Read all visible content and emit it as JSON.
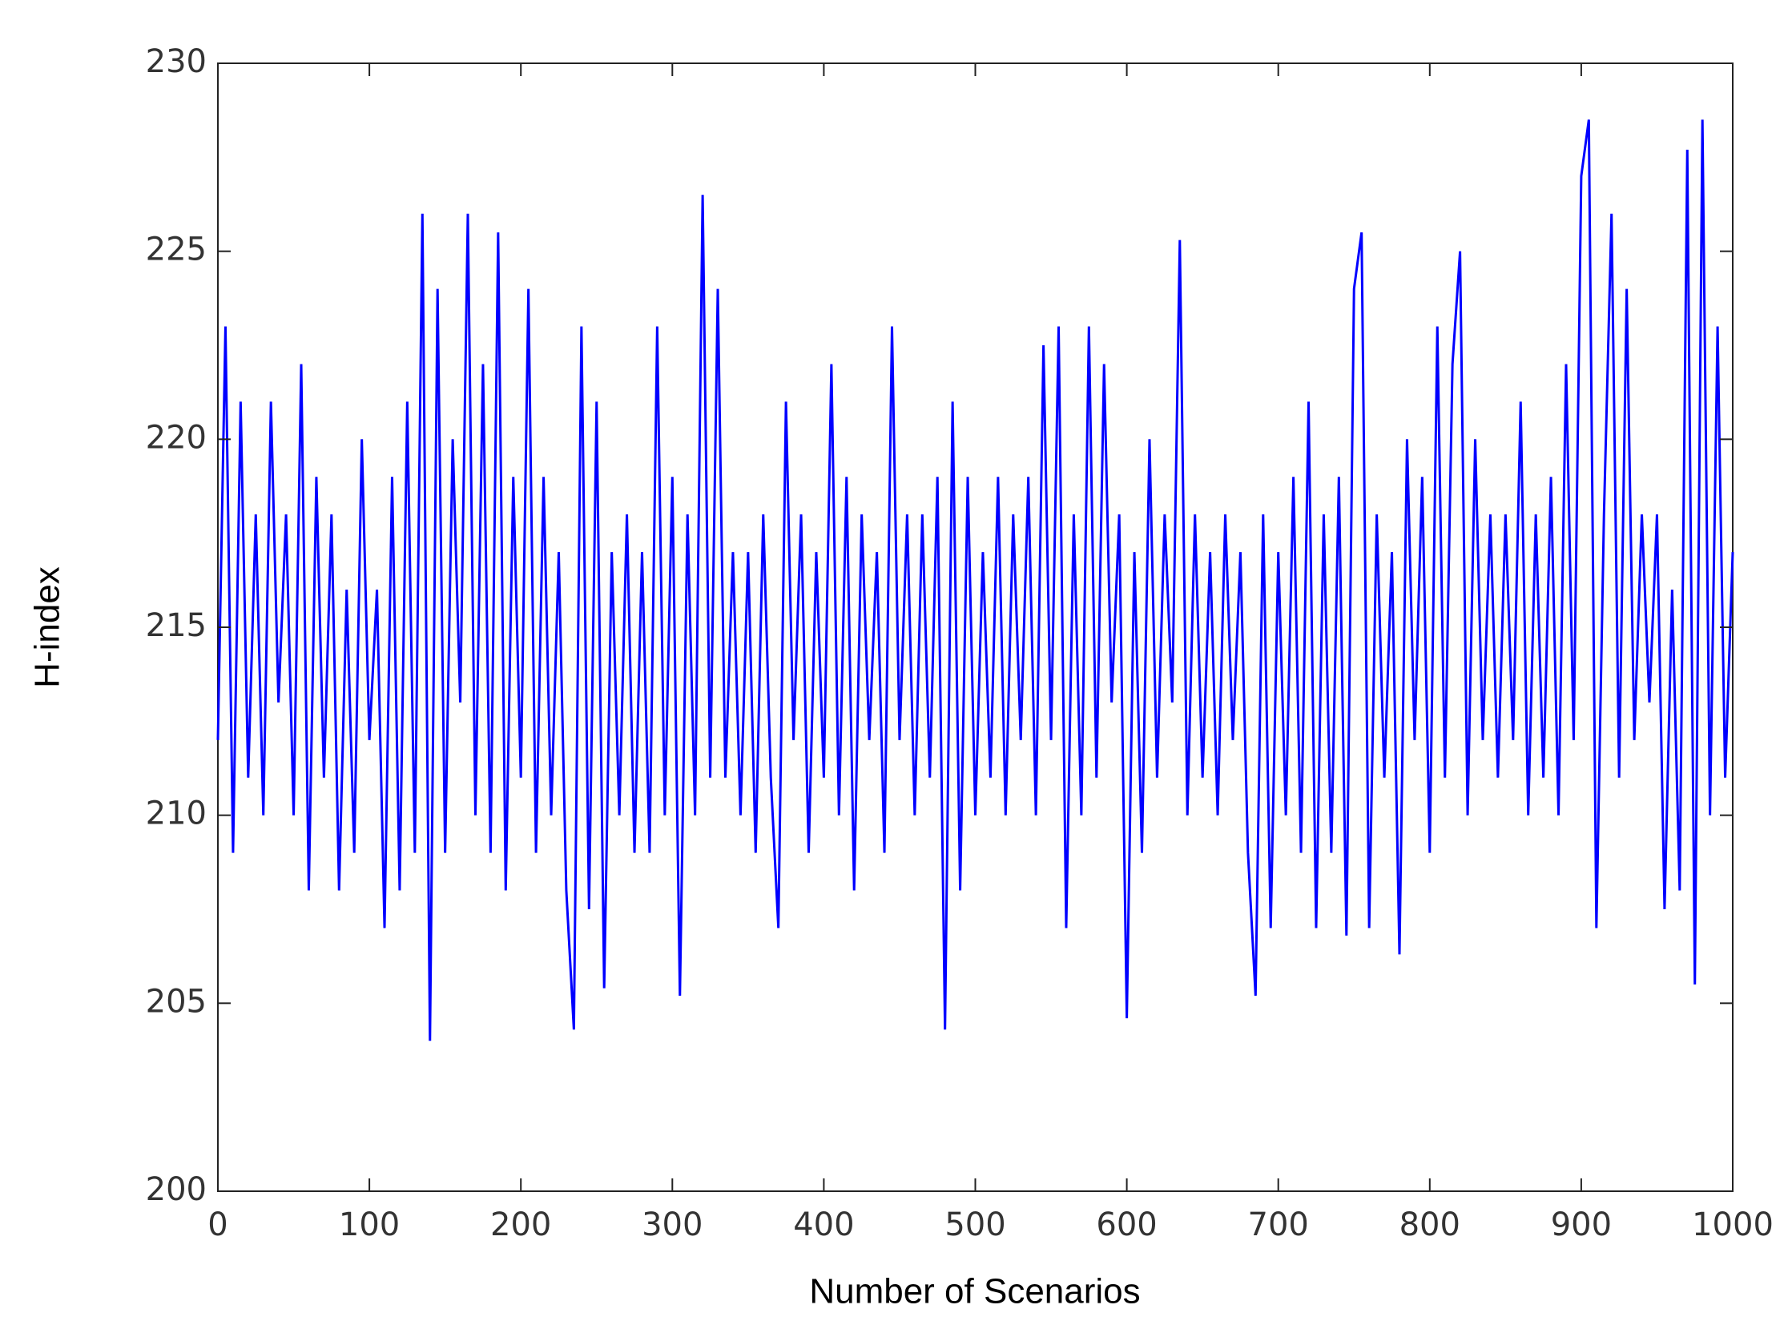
{
  "chart_data": {
    "type": "line",
    "x_label": "Number of Scenarios",
    "y_label": "H-index",
    "x": [
      0,
      5,
      10,
      15,
      20,
      25,
      30,
      35,
      40,
      45,
      50,
      55,
      60,
      65,
      70,
      75,
      80,
      85,
      90,
      95,
      100,
      105,
      110,
      115,
      120,
      125,
      130,
      135,
      140,
      145,
      150,
      155,
      160,
      165,
      170,
      175,
      180,
      185,
      190,
      195,
      200,
      205,
      210,
      215,
      220,
      225,
      230,
      235,
      240,
      245,
      250,
      255,
      260,
      265,
      270,
      275,
      280,
      285,
      290,
      295,
      300,
      305,
      310,
      315,
      320,
      325,
      330,
      335,
      340,
      345,
      350,
      355,
      360,
      365,
      370,
      375,
      380,
      385,
      390,
      395,
      400,
      405,
      410,
      415,
      420,
      425,
      430,
      435,
      440,
      445,
      450,
      455,
      460,
      465,
      470,
      475,
      480,
      485,
      490,
      495,
      500,
      505,
      510,
      515,
      520,
      525,
      530,
      535,
      540,
      545,
      550,
      555,
      560,
      565,
      570,
      575,
      580,
      585,
      590,
      595,
      600,
      605,
      610,
      615,
      620,
      625,
      630,
      635,
      640,
      645,
      650,
      655,
      660,
      665,
      670,
      675,
      680,
      685,
      690,
      695,
      700,
      705,
      710,
      715,
      720,
      725,
      730,
      735,
      740,
      745,
      750,
      755,
      760,
      765,
      770,
      775,
      780,
      785,
      790,
      795,
      800,
      805,
      810,
      815,
      820,
      825,
      830,
      835,
      840,
      845,
      850,
      855,
      860,
      865,
      870,
      875,
      880,
      885,
      890,
      895,
      900,
      905,
      910,
      915,
      920,
      925,
      930,
      935,
      940,
      945,
      950,
      955,
      960,
      965,
      970,
      975,
      980,
      985,
      990,
      995,
      1000
    ],
    "series": [
      {
        "name": "H-index",
        "color": "#0000ff",
        "values": [
          212,
          223,
          209,
          221,
          211,
          218,
          210,
          221,
          213,
          218,
          210,
          222,
          208,
          219,
          211,
          218,
          208,
          216,
          209,
          220,
          212,
          216,
          207,
          219,
          208,
          221,
          209,
          226,
          204,
          224,
          209,
          220,
          213,
          226,
          210,
          222,
          209,
          225.5,
          208,
          219,
          211,
          224,
          209,
          219,
          210,
          217,
          208,
          204.3,
          223,
          207.5,
          221,
          205.4,
          217,
          210,
          218,
          209,
          217,
          209,
          223,
          210,
          219,
          205.2,
          218,
          210,
          226.5,
          211,
          224,
          211,
          217,
          210,
          217,
          209,
          218,
          211,
          207,
          221,
          212,
          218,
          209,
          217,
          211,
          222,
          210,
          219,
          208,
          218,
          212,
          217,
          209,
          223,
          212,
          218,
          210,
          218,
          211,
          219,
          204.3,
          221,
          208,
          219,
          210,
          217,
          211,
          219,
          210,
          218,
          212,
          219,
          210,
          222.5,
          212,
          223,
          207,
          218,
          210,
          223,
          211,
          222,
          213,
          218,
          204.6,
          217,
          209,
          220,
          211,
          218,
          213,
          225.3,
          210,
          218,
          211,
          217,
          210,
          218,
          212,
          217,
          209,
          205.2,
          218,
          207,
          217,
          210,
          219,
          209,
          221,
          207,
          218,
          209,
          219,
          206.8,
          224,
          225.5,
          207,
          218,
          211,
          217,
          206.3,
          220,
          212,
          219,
          209,
          223,
          211,
          222,
          225,
          210,
          220,
          212,
          218,
          211,
          218,
          212,
          221,
          210,
          218,
          211,
          219,
          210,
          222,
          212,
          227,
          228.5,
          207,
          218,
          226,
          211,
          224,
          212,
          218,
          213,
          218,
          207.5,
          216,
          208,
          227.7,
          205.5,
          228.5,
          210,
          223,
          211,
          217
        ]
      }
    ],
    "xlim": [
      0,
      1000
    ],
    "xticks": [
      0,
      100,
      200,
      300,
      400,
      500,
      600,
      700,
      800,
      900,
      1000
    ],
    "ylim": [
      200,
      230
    ],
    "yticks": [
      200,
      205,
      210,
      215,
      220,
      225,
      230
    ]
  }
}
